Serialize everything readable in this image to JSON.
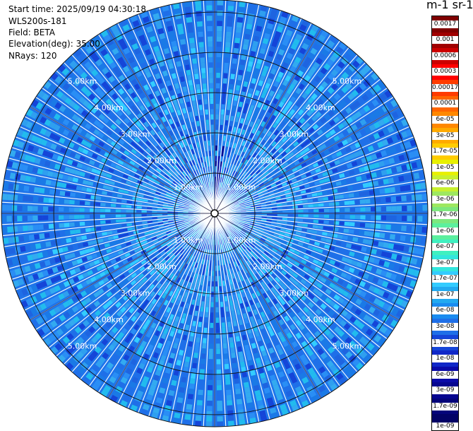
{
  "header": {
    "start_time": "Start time: 2025/09/19 04:30:18",
    "instrument": "WLS200s-181",
    "field": "Field: BETA",
    "elevation": "Elevation(deg): 35.00",
    "nrays": "NRays: 120"
  },
  "colorbar": {
    "unit_label": "m-1 sr-1",
    "ticks": [
      "0.0017",
      "0.001",
      "0.0006",
      "0.0003",
      "0.00017",
      "0.0001",
      "6e-05",
      "3e-05",
      "1.7e-05",
      "1e-05",
      "6e-06",
      "3e-06",
      "1.7e-06",
      "1e-06",
      "6e-07",
      "3e-07",
      "1.7e-07",
      "1e-07",
      "6e-08",
      "3e-08",
      "1.7e-08",
      "1e-08",
      "6e-09",
      "3e-09",
      "1.7e-09",
      "1e-09"
    ],
    "colors": [
      "#800000",
      "#a00000",
      "#cc0000",
      "#ff0000",
      "#ff3c00",
      "#ff6600",
      "#ff8800",
      "#ffaa00",
      "#ffcc00",
      "#e8f000",
      "#c8f030",
      "#9ee860",
      "#7de87d",
      "#5cf09e",
      "#40f0c0",
      "#33e6dd",
      "#33ccff",
      "#22aaf0",
      "#1a8cf0",
      "#1f6fe8",
      "#1545d8",
      "#1028c8",
      "#0a0aa8",
      "#060690",
      "#04047a",
      "#020266"
    ]
  },
  "chart_data": {
    "type": "ppi",
    "field": "BETA",
    "elevation_deg": 35.0,
    "n_rays": 120,
    "max_range_km": 5.3,
    "range_rings_km": [
      1.0,
      2.0,
      3.0,
      4.0,
      5.0
    ],
    "ring_labels": [
      "1.00km",
      "2.00km",
      "3.00km",
      "4.00km",
      "5.00km"
    ],
    "dominant_value_range": [
      "1.7e-08",
      "1e-07"
    ],
    "near_north_value_range": [
      "1e-09",
      "3e-09"
    ],
    "scale": "log"
  }
}
